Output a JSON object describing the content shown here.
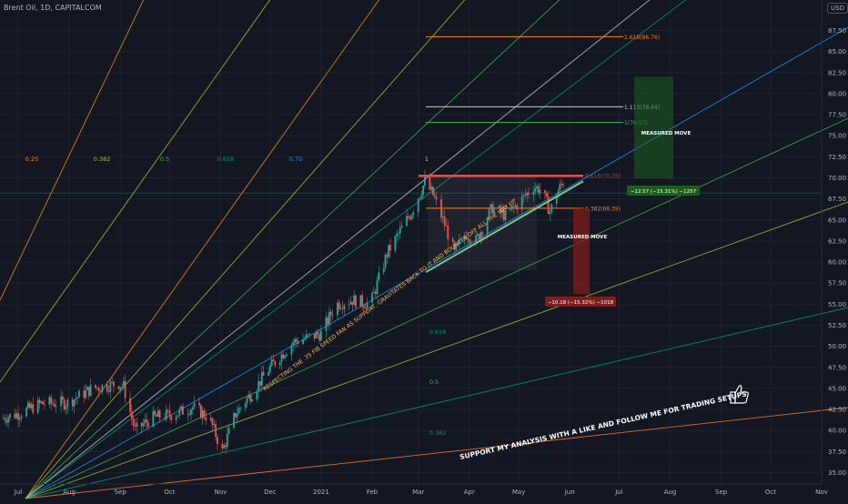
{
  "header": {
    "symbol": "Brent Oil, 1D, CAPITALCOM",
    "currency": "USD"
  },
  "colors": {
    "background": "#131722",
    "up": "#26a69a",
    "down": "#ef5350",
    "axis_text": "#b2b5be",
    "fan_0_25": "#f7931a",
    "fan_0_382": "#a0c93a",
    "fan_0_5": "#4caf50",
    "fan_0_618": "#009688",
    "fan_0_75": "#2196f3",
    "fan_1": "#c8c8c8",
    "fib_1_618": "#ff7f27",
    "fib_1_113": "#c8c8c8",
    "fib_1": "#4caf50",
    "fib_0_618": "#ef5350",
    "fib_0_382": "#ff7f27",
    "support_line": "#81c784",
    "resistance_line": "#ef5350"
  },
  "chart_data": {
    "type": "candlestick",
    "y_axis": {
      "range": [
        33.75,
        89.5
      ],
      "ticks": [
        "35.00",
        "37.50",
        "40.00",
        "42.50",
        "45.00",
        "47.50",
        "50.00",
        "52.50",
        "55.00",
        "57.50",
        "60.00",
        "62.50",
        "65.00",
        "67.50",
        "70.00",
        "72.50",
        "75.00",
        "77.50",
        "80.00",
        "82.50",
        "85.00",
        "87.50"
      ],
      "tick_values": [
        35,
        37.5,
        40,
        42.5,
        45,
        47.5,
        50,
        52.5,
        55,
        57.5,
        60,
        62.5,
        65,
        67.5,
        70,
        72.5,
        75,
        77.5,
        80,
        82.5,
        85,
        87.5
      ]
    },
    "x_axis": {
      "ticks": [
        "Jul",
        "Aug",
        "Sep",
        "Oct",
        "Nov",
        "Dec",
        "2021",
        "Feb",
        "Mar",
        "Apr",
        "May",
        "Jun",
        "Jul",
        "Aug",
        "Sep",
        "Oct",
        "Nov"
      ],
      "tick_dates": [
        "2020-07-01",
        "2020-08-01",
        "2020-09-01",
        "2020-10-01",
        "2020-11-01",
        "2020-12-01",
        "2021-01-01",
        "2021-02-01",
        "2021-03-01",
        "2021-04-01",
        "2021-05-01",
        "2021-06-01",
        "2021-07-01",
        "2021-08-01",
        "2021-09-01",
        "2021-10-01",
        "2021-11-01"
      ]
    },
    "price_path": [
      [
        "2020-06-22",
        41.5
      ],
      [
        "2020-07-01",
        42.0
      ],
      [
        "2020-07-15",
        43.2
      ],
      [
        "2020-07-31",
        43.3
      ],
      [
        "2020-08-15",
        45.0
      ],
      [
        "2020-08-31",
        45.6
      ],
      [
        "2020-09-03",
        45.2
      ],
      [
        "2020-09-10",
        40.0
      ],
      [
        "2020-09-20",
        41.5
      ],
      [
        "2020-10-05",
        42.0
      ],
      [
        "2020-10-15",
        42.8
      ],
      [
        "2020-10-25",
        41.5
      ],
      [
        "2020-11-02",
        37.5
      ],
      [
        "2020-11-10",
        42.0
      ],
      [
        "2020-11-20",
        44.5
      ],
      [
        "2020-12-01",
        47.5
      ],
      [
        "2020-12-15",
        50.5
      ],
      [
        "2021-01-01",
        51.5
      ],
      [
        "2021-01-10",
        55.0
      ],
      [
        "2021-01-20",
        55.5
      ],
      [
        "2021-01-31",
        55.0
      ],
      [
        "2021-02-10",
        61.0
      ],
      [
        "2021-02-25",
        66.0
      ],
      [
        "2021-03-05",
        69.5
      ],
      [
        "2021-03-10",
        68.0
      ],
      [
        "2021-03-18",
        64.0
      ],
      [
        "2021-03-23",
        61.0
      ],
      [
        "2021-03-30",
        63.5
      ],
      [
        "2021-04-05",
        62.5
      ],
      [
        "2021-04-15",
        66.5
      ],
      [
        "2021-04-23",
        65.5
      ],
      [
        "2021-05-01",
        67.0
      ],
      [
        "2021-05-10",
        69.0
      ],
      [
        "2021-05-15",
        68.5
      ],
      [
        "2021-05-20",
        66.0
      ],
      [
        "2021-05-25",
        68.5
      ],
      [
        "2021-05-28",
        69.5
      ]
    ],
    "fib_retracement": [
      {
        "label": "1.618(86.76)",
        "value": 86.76,
        "color_key": "fib_1_618"
      },
      {
        "label": "1.113(78.44)",
        "value": 78.44,
        "color_key": "fib_1_113"
      },
      {
        "label": "1(76.57)",
        "value": 76.57,
        "color_key": "fib_1"
      },
      {
        "label": "0.618(70.28)",
        "value": 70.28,
        "color_key": "fib_0_618"
      },
      {
        "label": "0.382(66.39)",
        "value": 66.39,
        "color_key": "fib_0_382"
      }
    ],
    "fan_labels_top": [
      "0.25",
      "0.382",
      "0.5",
      "0.618",
      "0.75",
      "1"
    ],
    "fan_labels_lower": [
      "0.618",
      "0.5",
      "0.382"
    ],
    "measured_move_up": {
      "label": "MEASURED MOVE",
      "box_label": "−12.57 (−15.31%) −1257",
      "from": 69.9,
      "to": 82.0
    },
    "measured_move_down": {
      "label": "MEASURED MOVE",
      "box_label": "−10.18 (−15.32%) −1018",
      "from": 66.4,
      "to": 56.2
    },
    "annotations": {
      "fan_note": "RESPECTING THE .75 FIB SPEED FAN AS SUPPORT, GRAVITATES BACK TO IT  AND BOUNCES OFF  ALL THE WAY UP",
      "cta": "SUPPORT MY ANALYSIS WITH A LIKE AND FOLLOW ME FOR  TRADING SETUPS",
      "thumb_icon": "thumbs-up-icon"
    }
  }
}
